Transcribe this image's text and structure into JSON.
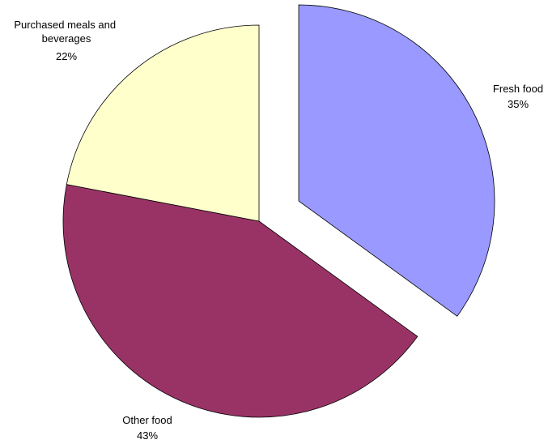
{
  "chart_data": {
    "type": "pie",
    "title": "",
    "slices": [
      {
        "label": "Fresh food",
        "value": 35,
        "value_label": "35%",
        "color": "#9999ff",
        "exploded": true
      },
      {
        "label": "Other food",
        "value": 43,
        "value_label": "43%",
        "color": "#993366",
        "exploded": false
      },
      {
        "label": "Purchased meals and beverages",
        "value": 22,
        "value_label": "22%",
        "color": "#ffffcc",
        "exploded": false
      }
    ],
    "start_angle": "12 o'clock",
    "direction": "clockwise",
    "legend": "none"
  }
}
